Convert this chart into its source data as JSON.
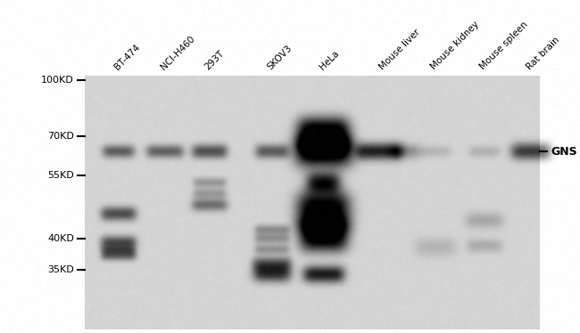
{
  "lane_labels": [
    "BT-474",
    "NCI-H460",
    "293T",
    "SKOV3",
    "HeLa",
    "Mouse liver",
    "Mouse kidney",
    "Mouse spleen",
    "Rat brain"
  ],
  "mw_labels": [
    "100KD",
    "70KD",
    "55KD",
    "40KD",
    "35KD"
  ],
  "gns_label": "GNS",
  "fig_width": 6.5,
  "fig_height": 3.74,
  "dpi": 100,
  "blot_bg": 0.83,
  "outer_bg": 1.0
}
